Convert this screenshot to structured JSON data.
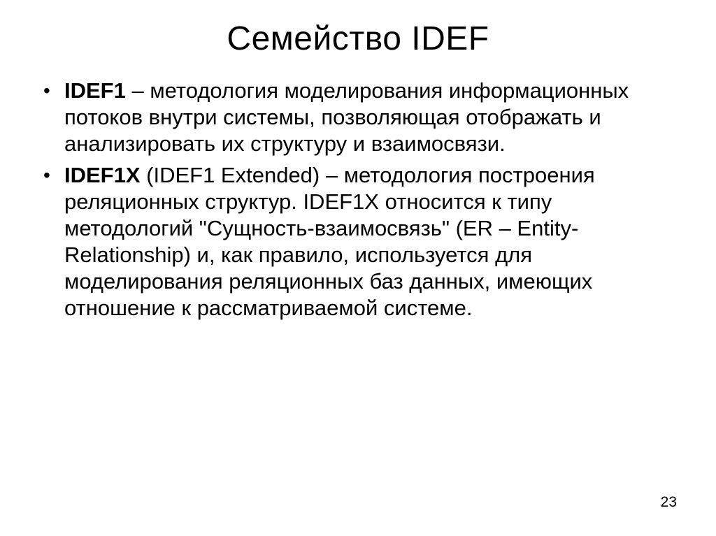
{
  "title": "Семейство IDEF",
  "bullets": [
    {
      "term": "IDEF1",
      "text": " – методология моделирования информационных потоков внутри системы, позволяющая отображать и анализировать их структуру и взаимосвязи."
    },
    {
      "term": "IDEF1X",
      "text": " (IDEF1 Extended) – методология построения реляционных структур. IDEF1X относится к типу методологий \"Сущность-взаимосвязь\" (ER – Entity-Relationship) и, как правило, используется для моделирования реляционных баз данных, имеющих отношение к рассматриваемой системе."
    }
  ],
  "page_number": "23"
}
